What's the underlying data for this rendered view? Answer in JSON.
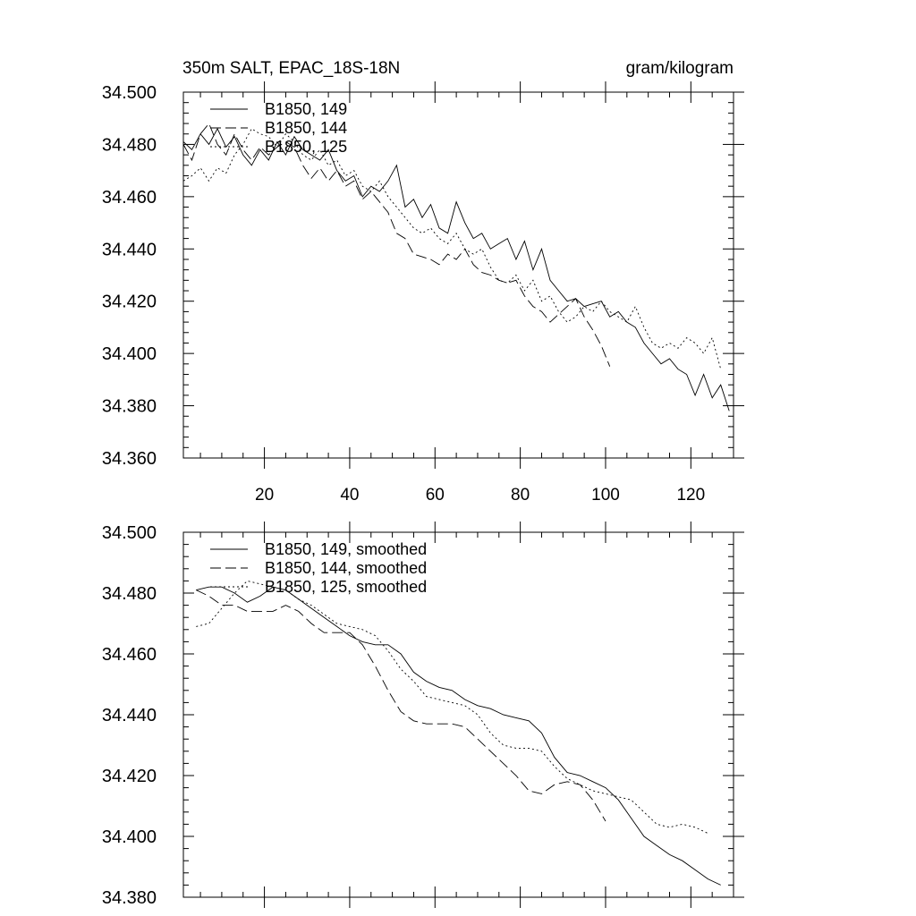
{
  "chart_data": [
    {
      "type": "line",
      "title": "350m SALT, EPAC_18S-18N",
      "units": "gram/kilogram",
      "xlabel": "",
      "ylabel": "",
      "xlim": [
        1,
        130
      ],
      "ylim": [
        34.36,
        34.5
      ],
      "x_ticks": [
        20,
        40,
        60,
        80,
        100,
        120
      ],
      "y_ticks": [
        34.36,
        34.38,
        34.4,
        34.42,
        34.44,
        34.46,
        34.48,
        34.5
      ],
      "y_tick_labels": [
        "34.360",
        "34.380",
        "34.400",
        "34.420",
        "34.440",
        "34.460",
        "34.480",
        "34.500"
      ],
      "legend_position": "top-left",
      "series": [
        {
          "name": "B1850, 149",
          "style": "solid",
          "x": [
            1,
            3,
            5,
            7,
            9,
            11,
            13,
            15,
            17,
            19,
            21,
            23,
            25,
            27,
            29,
            31,
            33,
            35,
            37,
            39,
            41,
            43,
            45,
            47,
            49,
            51,
            53,
            55,
            57,
            59,
            61,
            63,
            65,
            67,
            69,
            71,
            73,
            75,
            77,
            79,
            81,
            83,
            85,
            87,
            89,
            91,
            93,
            95,
            97,
            99,
            101,
            103,
            105,
            107,
            109,
            111,
            113,
            115,
            117,
            119,
            121,
            123,
            125,
            127,
            129
          ],
          "values": [
            34.481,
            34.478,
            34.484,
            34.48,
            34.486,
            34.479,
            34.483,
            34.476,
            34.472,
            34.478,
            34.474,
            34.481,
            34.476,
            34.483,
            34.478,
            34.476,
            34.474,
            34.478,
            34.47,
            34.466,
            34.468,
            34.46,
            34.464,
            34.462,
            34.466,
            34.472,
            34.456,
            34.459,
            34.452,
            34.457,
            34.448,
            34.446,
            34.458,
            34.45,
            34.444,
            34.446,
            34.44,
            34.442,
            34.444,
            34.436,
            34.443,
            34.432,
            34.44,
            34.428,
            34.424,
            34.42,
            34.421,
            34.418,
            34.419,
            34.42,
            34.414,
            34.416,
            34.412,
            34.41,
            34.404,
            34.4,
            34.396,
            34.398,
            34.394,
            34.392,
            34.384,
            34.392,
            34.383,
            34.388,
            34.378
          ]
        },
        {
          "name": "B1850, 144",
          "style": "dashed",
          "x": [
            1,
            3,
            5,
            7,
            9,
            11,
            13,
            15,
            17,
            19,
            21,
            23,
            25,
            27,
            29,
            31,
            33,
            35,
            37,
            39,
            41,
            43,
            45,
            47,
            49,
            51,
            53,
            55,
            57,
            59,
            61,
            63,
            65,
            67,
            69,
            71,
            73,
            75,
            77,
            79,
            81,
            83,
            85,
            87,
            89,
            91,
            93,
            95,
            97,
            99,
            101
          ],
          "values": [
            34.48,
            34.474,
            34.484,
            34.488,
            34.48,
            34.476,
            34.484,
            34.478,
            34.474,
            34.479,
            34.476,
            34.479,
            34.481,
            34.479,
            34.472,
            34.467,
            34.471,
            34.466,
            34.47,
            34.464,
            34.466,
            34.459,
            34.462,
            34.458,
            34.454,
            34.446,
            34.444,
            34.438,
            34.437,
            34.436,
            34.434,
            34.438,
            34.436,
            34.44,
            34.434,
            34.431,
            34.43,
            34.428,
            34.427,
            34.428,
            34.422,
            34.418,
            34.416,
            34.412,
            34.415,
            34.418,
            34.421,
            34.414,
            34.409,
            34.403,
            34.395
          ]
        },
        {
          "name": "B1850, 125",
          "style": "dotted",
          "x": [
            1,
            3,
            5,
            7,
            9,
            11,
            13,
            15,
            17,
            19,
            21,
            23,
            25,
            27,
            29,
            31,
            33,
            35,
            37,
            39,
            41,
            43,
            45,
            47,
            49,
            51,
            53,
            55,
            57,
            59,
            61,
            63,
            65,
            67,
            69,
            71,
            73,
            75,
            77,
            79,
            81,
            83,
            85,
            87,
            89,
            91,
            93,
            95,
            97,
            99,
            101,
            103,
            105,
            107,
            109,
            111,
            113,
            115,
            117,
            119,
            121,
            123,
            125,
            127
          ],
          "values": [
            34.466,
            34.468,
            34.471,
            34.466,
            34.471,
            34.469,
            34.476,
            34.48,
            34.486,
            34.484,
            34.483,
            34.479,
            34.484,
            34.481,
            34.476,
            34.474,
            34.478,
            34.472,
            34.474,
            34.468,
            34.47,
            34.464,
            34.462,
            34.466,
            34.46,
            34.456,
            34.452,
            34.448,
            34.446,
            34.448,
            34.444,
            34.442,
            34.446,
            34.44,
            34.438,
            34.44,
            34.433,
            34.428,
            34.427,
            34.43,
            34.424,
            34.428,
            34.42,
            34.422,
            34.416,
            34.412,
            34.414,
            34.418,
            34.416,
            34.42,
            34.416,
            34.414,
            34.412,
            34.418,
            34.41,
            34.404,
            34.402,
            34.404,
            34.402,
            34.406,
            34.404,
            34.4,
            34.406,
            34.394
          ]
        }
      ]
    },
    {
      "type": "line",
      "title": "",
      "xlabel": "",
      "ylabel": "",
      "xlim": [
        1,
        130
      ],
      "ylim": [
        34.38,
        34.5
      ],
      "x_ticks": [
        20,
        40,
        60,
        80,
        100,
        120
      ],
      "y_ticks": [
        34.38,
        34.4,
        34.42,
        34.44,
        34.46,
        34.48,
        34.5
      ],
      "y_tick_labels": [
        "34.380",
        "34.400",
        "34.420",
        "34.440",
        "34.460",
        "34.480",
        "34.500"
      ],
      "legend_position": "top-left",
      "series": [
        {
          "name": "B1850, 149, smoothed",
          "style": "solid",
          "x": [
            4,
            7,
            10,
            13,
            16,
            19,
            22,
            25,
            28,
            31,
            34,
            37,
            40,
            43,
            46,
            49,
            52,
            55,
            58,
            61,
            64,
            67,
            70,
            73,
            76,
            79,
            82,
            85,
            88,
            91,
            94,
            97,
            100,
            103,
            106,
            109,
            112,
            115,
            118,
            121,
            124,
            127
          ],
          "values": [
            34.481,
            34.482,
            34.482,
            34.48,
            34.477,
            34.479,
            34.482,
            34.481,
            34.478,
            34.475,
            34.472,
            34.469,
            34.466,
            34.464,
            34.463,
            34.463,
            34.46,
            34.454,
            34.451,
            34.449,
            34.448,
            34.445,
            34.443,
            34.442,
            34.44,
            34.439,
            34.438,
            34.434,
            34.426,
            34.421,
            34.42,
            34.418,
            34.416,
            34.412,
            34.406,
            34.4,
            34.397,
            34.394,
            34.392,
            34.389,
            34.386,
            34.384
          ]
        },
        {
          "name": "B1850, 144, smoothed",
          "style": "dashed",
          "x": [
            4,
            7,
            10,
            13,
            16,
            19,
            22,
            25,
            28,
            31,
            34,
            37,
            40,
            43,
            46,
            49,
            52,
            55,
            58,
            61,
            64,
            67,
            70,
            73,
            76,
            79,
            82,
            85,
            88,
            91,
            94,
            97,
            100
          ],
          "values": [
            34.481,
            34.479,
            34.476,
            34.476,
            34.474,
            34.474,
            34.474,
            34.476,
            34.474,
            34.47,
            34.467,
            34.467,
            34.467,
            34.463,
            34.456,
            34.448,
            34.441,
            34.438,
            34.437,
            34.437,
            34.437,
            34.436,
            34.432,
            34.428,
            34.424,
            34.42,
            34.415,
            34.414,
            34.417,
            34.418,
            34.417,
            34.412,
            34.405
          ]
        },
        {
          "name": "B1850, 125, smoothed",
          "style": "dotted",
          "x": [
            4,
            7,
            10,
            13,
            16,
            19,
            22,
            25,
            28,
            31,
            34,
            37,
            40,
            43,
            46,
            49,
            52,
            55,
            58,
            61,
            64,
            67,
            70,
            73,
            76,
            79,
            82,
            85,
            88,
            91,
            94,
            97,
            100,
            103,
            106,
            109,
            112,
            115,
            118,
            121,
            124
          ],
          "values": [
            34.469,
            34.47,
            34.475,
            34.48,
            34.484,
            34.483,
            34.482,
            34.481,
            34.478,
            34.476,
            34.473,
            34.47,
            34.469,
            34.468,
            34.466,
            34.461,
            34.455,
            34.451,
            34.446,
            34.445,
            34.444,
            34.443,
            34.44,
            34.434,
            34.43,
            34.429,
            34.429,
            34.428,
            34.423,
            34.419,
            34.417,
            34.415,
            34.414,
            34.413,
            34.412,
            34.408,
            34.404,
            34.403,
            34.404,
            34.403,
            34.401
          ]
        }
      ]
    }
  ]
}
